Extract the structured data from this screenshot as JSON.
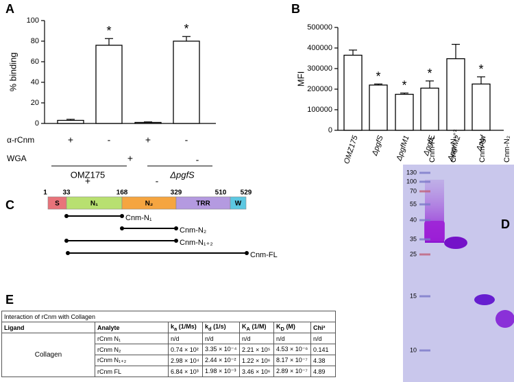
{
  "panel_labels": {
    "a": "A",
    "b": "B",
    "c": "C",
    "d": "D",
    "e": "E"
  },
  "chart_data": [
    {
      "type": "bar",
      "ylabel": "% binding",
      "values": [
        3,
        76,
        1,
        80
      ],
      "errors": [
        1,
        6.5,
        0.5,
        4.5
      ],
      "significance": [
        null,
        "*",
        null,
        "*"
      ],
      "color": "#ffffff",
      "ylim": [
        0,
        100
      ],
      "yticks": [
        0,
        20,
        40,
        60,
        80,
        100
      ],
      "conditions": [
        {
          "label": "α-rCnm",
          "marks": [
            "+",
            "-",
            "+",
            "-"
          ]
        },
        {
          "label": "WGA",
          "marks": [
            "+",
            "+",
            "-",
            "-"
          ]
        }
      ],
      "groups": [
        "OMZ175",
        "ΔpgfS"
      ]
    },
    {
      "type": "bar",
      "ylabel": "MFI",
      "categories": [
        "OMZ175",
        "ΔpgfS",
        "ΔpgfM1",
        "ΔpgfE",
        "ΔpgfM2",
        "Δpgf"
      ],
      "values": [
        365000,
        220000,
        175000,
        205000,
        348000,
        225000
      ],
      "errors": [
        25000,
        5000,
        6000,
        35000,
        70000,
        35000
      ],
      "significance": [
        null,
        "*",
        "*",
        "*",
        null,
        "*"
      ],
      "color": "#ffffff",
      "ylim": [
        0,
        500000
      ],
      "yticks": [
        0,
        100000,
        200000,
        300000,
        400000,
        500000
      ]
    }
  ],
  "domain_diagram": {
    "positions": [
      "1",
      "33",
      "168",
      "329",
      "510",
      "529"
    ],
    "domains": [
      {
        "label": "S",
        "color": "#e8737a"
      },
      {
        "label": "N₁",
        "color": "#b8e070"
      },
      {
        "label": "N₂",
        "color": "#f5a540"
      },
      {
        "label": "TRR",
        "color": "#b49ae0"
      },
      {
        "label": "W",
        "color": "#5cc8e2"
      }
    ],
    "constructs": [
      "Cnm-N₁",
      "Cnm-N₂",
      "Cnm-N₁₊₂",
      "Cnm-FL"
    ]
  },
  "gel": {
    "lanes": [
      "Cnm-FL",
      "Cnm-N₁₊₂",
      "Cnm-N₁",
      "Cnm-N₂"
    ],
    "markers": [
      "130",
      "100",
      "70",
      "55",
      "40",
      "35",
      "25",
      "15",
      "10"
    ]
  },
  "table": {
    "caption": "Interaction of rCnm with Collagen",
    "headers": [
      {
        "text": "Ligand"
      },
      {
        "text": "Analyte"
      },
      {
        "text": "k",
        "sub": "a",
        "unit": "(1/Ms)"
      },
      {
        "text": "k",
        "sub": "d",
        "unit": "(1/s)"
      },
      {
        "text": "K",
        "sub": "A",
        "unit": "(1/M)"
      },
      {
        "text": "K",
        "sub": "D",
        "unit": "(M)"
      },
      {
        "text": "Chi²"
      }
    ],
    "ligand": "Collagen",
    "rows": [
      [
        "rCnm N₁",
        "n/d",
        "n/d",
        "n/d",
        "n/d",
        "n/d"
      ],
      [
        "rCnm N₂",
        "0.74 × 10²",
        "3.35 × 10⁻⁴",
        "2.21 × 10⁵",
        "4.53 × 10⁻⁶",
        "0.141"
      ],
      [
        "rCnm N₁₊₂",
        "2.98 × 10⁴",
        "2.44 × 10⁻²",
        "1.22 × 10⁶",
        "8.17 × 10⁻⁷",
        "4.38"
      ],
      [
        "rCnm FL",
        "6.84 × 10³",
        "1.98 × 10⁻³",
        "3.46 × 10⁶",
        "2.89 × 10⁻⁷",
        "4.89"
      ]
    ]
  }
}
